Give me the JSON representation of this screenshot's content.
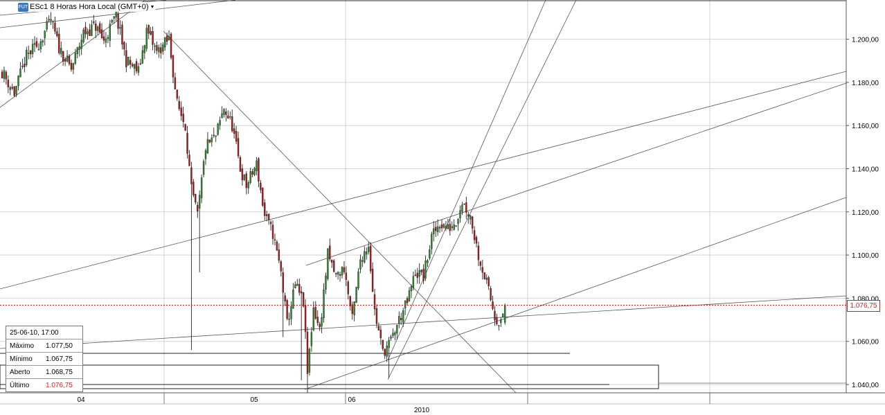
{
  "title": "ESc1 8 Horas Hora Local (GMT+0)",
  "badge": "FUT",
  "colors": {
    "up": "#2a8a2a",
    "down": "#b01818",
    "grid": "#d2d2d2",
    "last_price_line": "#d02020",
    "trendline": "#555555"
  },
  "info_box": {
    "date": "25-06-10, 17:00",
    "rows": [
      {
        "label": "Máximo",
        "value": "1.077,50"
      },
      {
        "label": "Mínimo",
        "value": "1.067,75"
      },
      {
        "label": "Aberto",
        "value": "1.068,75"
      },
      {
        "label": "Último",
        "value": "1.076,75",
        "highlight": true
      }
    ]
  },
  "last_price_label": "1.076,75",
  "chart_data": {
    "type": "candlestick",
    "title": "ESc1 8 Horas Hora Local (GMT+0)",
    "y_ticks": [
      "1.040,00",
      "1.060,00",
      "1.080,00",
      "1.100,00",
      "1.120,00",
      "1.140,00",
      "1.160,00",
      "1.180,00",
      "1.200,00"
    ],
    "y_tick_values": [
      1040,
      1060,
      1080,
      1100,
      1120,
      1140,
      1160,
      1180,
      1200
    ],
    "ylim": [
      1034,
      1215
    ],
    "x_ticks": [
      "04",
      "05",
      "06"
    ],
    "x_year_label": "2010",
    "last_price": 1076.75,
    "grid": true,
    "close_path": [
      {
        "i": 0,
        "c": 1185
      },
      {
        "i": 6,
        "c": 1175
      },
      {
        "i": 12,
        "c": 1192
      },
      {
        "i": 18,
        "c": 1198
      },
      {
        "i": 24,
        "c": 1209
      },
      {
        "i": 28,
        "c": 1196
      },
      {
        "i": 34,
        "c": 1186
      },
      {
        "i": 40,
        "c": 1203
      },
      {
        "i": 46,
        "c": 1206
      },
      {
        "i": 50,
        "c": 1199
      },
      {
        "i": 56,
        "c": 1211
      },
      {
        "i": 61,
        "c": 1190
      },
      {
        "i": 67,
        "c": 1185
      },
      {
        "i": 71,
        "c": 1204
      },
      {
        "i": 76,
        "c": 1194
      },
      {
        "i": 82,
        "c": 1200
      },
      {
        "i": 86,
        "c": 1170
      },
      {
        "i": 90,
        "c": 1160
      },
      {
        "i": 93,
        "c": 1130
      },
      {
        "i": 96,
        "c": 1118
      },
      {
        "i": 100,
        "c": 1150
      },
      {
        "i": 105,
        "c": 1155
      },
      {
        "i": 109,
        "c": 1168
      },
      {
        "i": 113,
        "c": 1160
      },
      {
        "i": 117,
        "c": 1140
      },
      {
        "i": 120,
        "c": 1132
      },
      {
        "i": 125,
        "c": 1142
      },
      {
        "i": 129,
        "c": 1118
      },
      {
        "i": 133,
        "c": 1110
      },
      {
        "i": 137,
        "c": 1092
      },
      {
        "i": 140,
        "c": 1068
      },
      {
        "i": 144,
        "c": 1086
      },
      {
        "i": 148,
        "c": 1078
      },
      {
        "i": 150,
        "c": 1045
      },
      {
        "i": 153,
        "c": 1076
      },
      {
        "i": 156,
        "c": 1065
      },
      {
        "i": 160,
        "c": 1100
      },
      {
        "i": 164,
        "c": 1090
      },
      {
        "i": 168,
        "c": 1094
      },
      {
        "i": 172,
        "c": 1070
      },
      {
        "i": 176,
        "c": 1098
      },
      {
        "i": 180,
        "c": 1105
      },
      {
        "i": 183,
        "c": 1074
      },
      {
        "i": 187,
        "c": 1055
      },
      {
        "i": 191,
        "c": 1060
      },
      {
        "i": 195,
        "c": 1070
      },
      {
        "i": 199,
        "c": 1078
      },
      {
        "i": 203,
        "c": 1092
      },
      {
        "i": 207,
        "c": 1090
      },
      {
        "i": 211,
        "c": 1108
      },
      {
        "i": 215,
        "c": 1115
      },
      {
        "i": 219,
        "c": 1112
      },
      {
        "i": 223,
        "c": 1116
      },
      {
        "i": 226,
        "c": 1125
      },
      {
        "i": 230,
        "c": 1118
      },
      {
        "i": 234,
        "c": 1100
      },
      {
        "i": 238,
        "c": 1087
      },
      {
        "i": 242,
        "c": 1072
      },
      {
        "i": 245,
        "c": 1068
      },
      {
        "i": 247,
        "c": 1076.75
      }
    ]
  }
}
